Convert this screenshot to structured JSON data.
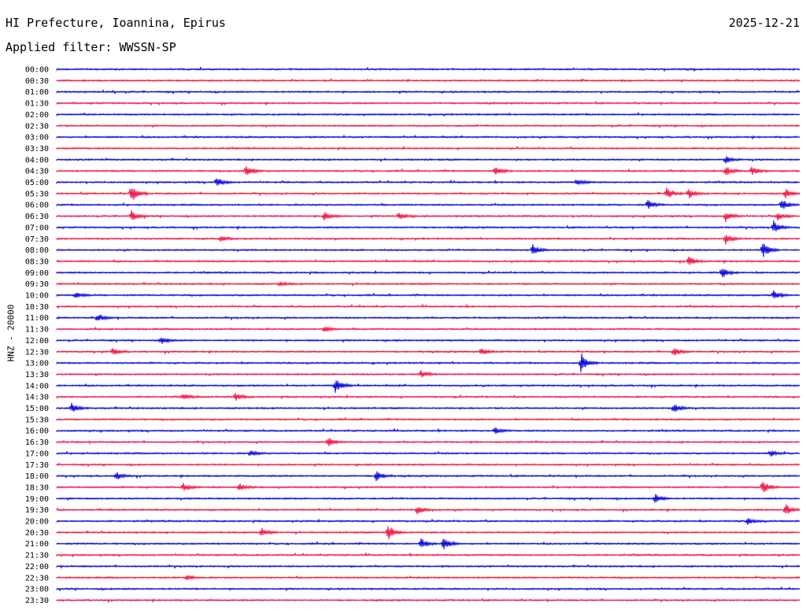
{
  "header": {
    "title": "HI Prefecture, Ioannina, Epirus",
    "date": "2025-12-21",
    "filter": "Applied filter: WWSSN-SP"
  },
  "colors": {
    "blue": "#0000d8",
    "red": "#ee1144"
  },
  "chart_data": {
    "type": "line",
    "chart_kind": "helicorder",
    "ylabel": "HNZ - 20000",
    "rows": [
      {
        "time": "00:00",
        "color": "blue",
        "events": []
      },
      {
        "time": "00:30",
        "color": "red",
        "events": []
      },
      {
        "time": "01:00",
        "color": "blue",
        "events": []
      },
      {
        "time": "01:30",
        "color": "red",
        "events": []
      },
      {
        "time": "02:00",
        "color": "blue",
        "events": []
      },
      {
        "time": "02:30",
        "color": "red",
        "events": []
      },
      {
        "time": "03:00",
        "color": "blue",
        "events": []
      },
      {
        "time": "03:30",
        "color": "red",
        "events": []
      },
      {
        "time": "04:00",
        "color": "blue",
        "events": [
          {
            "t": 0.9,
            "a": 5
          }
        ]
      },
      {
        "time": "04:30",
        "color": "red",
        "events": [
          {
            "t": 0.255,
            "a": 8
          },
          {
            "t": 0.59,
            "a": 7
          },
          {
            "t": 0.9,
            "a": 6
          },
          {
            "t": 0.935,
            "a": 6
          }
        ]
      },
      {
        "time": "05:00",
        "color": "blue",
        "events": [
          {
            "t": 0.215,
            "a": 6
          },
          {
            "t": 0.7,
            "a": 4
          }
        ]
      },
      {
        "time": "05:30",
        "color": "red",
        "events": [
          {
            "t": 0.1,
            "a": 12
          },
          {
            "t": 0.82,
            "a": 8
          },
          {
            "t": 0.85,
            "a": 7
          },
          {
            "t": 0.98,
            "a": 7
          }
        ]
      },
      {
        "time": "06:00",
        "color": "blue",
        "events": [
          {
            "t": 0.795,
            "a": 6
          },
          {
            "t": 0.975,
            "a": 8
          }
        ]
      },
      {
        "time": "06:30",
        "color": "red",
        "events": [
          {
            "t": 0.1,
            "a": 7
          },
          {
            "t": 0.36,
            "a": 6
          },
          {
            "t": 0.46,
            "a": 5
          },
          {
            "t": 0.9,
            "a": 7
          },
          {
            "t": 0.97,
            "a": 5
          }
        ]
      },
      {
        "time": "07:00",
        "color": "blue",
        "events": [
          {
            "t": 0.965,
            "a": 8
          }
        ]
      },
      {
        "time": "07:30",
        "color": "red",
        "events": [
          {
            "t": 0.22,
            "a": 4
          },
          {
            "t": 0.9,
            "a": 7
          }
        ]
      },
      {
        "time": "08:00",
        "color": "blue",
        "events": [
          {
            "t": 0.64,
            "a": 8
          },
          {
            "t": 0.95,
            "a": 10
          }
        ]
      },
      {
        "time": "08:30",
        "color": "red",
        "events": [
          {
            "t": 0.85,
            "a": 7
          }
        ]
      },
      {
        "time": "09:00",
        "color": "blue",
        "events": [
          {
            "t": 0.895,
            "a": 7
          }
        ]
      },
      {
        "time": "09:30",
        "color": "red",
        "events": [
          {
            "t": 0.3,
            "a": 3
          }
        ]
      },
      {
        "time": "10:00",
        "color": "blue",
        "events": [
          {
            "t": 0.025,
            "a": 4
          },
          {
            "t": 0.965,
            "a": 6
          }
        ]
      },
      {
        "time": "10:30",
        "color": "red",
        "events": []
      },
      {
        "time": "11:00",
        "color": "blue",
        "events": [
          {
            "t": 0.055,
            "a": 5
          }
        ]
      },
      {
        "time": "11:30",
        "color": "red",
        "events": [
          {
            "t": 0.36,
            "a": 4
          }
        ]
      },
      {
        "time": "12:00",
        "color": "blue",
        "events": [
          {
            "t": 0.14,
            "a": 5
          }
        ]
      },
      {
        "time": "12:30",
        "color": "red",
        "events": [
          {
            "t": 0.075,
            "a": 5
          },
          {
            "t": 0.57,
            "a": 5
          },
          {
            "t": 0.83,
            "a": 6
          }
        ]
      },
      {
        "time": "13:00",
        "color": "blue",
        "events": [
          {
            "t": 0.705,
            "a": 12
          }
        ]
      },
      {
        "time": "13:30",
        "color": "red",
        "events": [
          {
            "t": 0.49,
            "a": 5
          }
        ]
      },
      {
        "time": "14:00",
        "color": "blue",
        "events": [
          {
            "t": 0.375,
            "a": 9
          }
        ]
      },
      {
        "time": "14:30",
        "color": "red",
        "events": [
          {
            "t": 0.17,
            "a": 4
          },
          {
            "t": 0.24,
            "a": 5
          }
        ]
      },
      {
        "time": "15:00",
        "color": "blue",
        "events": [
          {
            "t": 0.02,
            "a": 6
          },
          {
            "t": 0.83,
            "a": 7
          }
        ]
      },
      {
        "time": "15:30",
        "color": "red",
        "events": []
      },
      {
        "time": "16:00",
        "color": "blue",
        "events": [
          {
            "t": 0.59,
            "a": 4
          }
        ]
      },
      {
        "time": "16:30",
        "color": "red",
        "events": [
          {
            "t": 0.365,
            "a": 7
          }
        ]
      },
      {
        "time": "17:00",
        "color": "blue",
        "events": [
          {
            "t": 0.26,
            "a": 4
          },
          {
            "t": 0.96,
            "a": 4
          }
        ]
      },
      {
        "time": "17:30",
        "color": "red",
        "events": []
      },
      {
        "time": "18:00",
        "color": "blue",
        "events": [
          {
            "t": 0.08,
            "a": 5
          },
          {
            "t": 0.43,
            "a": 7
          }
        ]
      },
      {
        "time": "18:30",
        "color": "red",
        "events": [
          {
            "t": 0.17,
            "a": 6
          },
          {
            "t": 0.245,
            "a": 5
          },
          {
            "t": 0.95,
            "a": 9
          }
        ]
      },
      {
        "time": "19:00",
        "color": "blue",
        "events": [
          {
            "t": 0.805,
            "a": 7
          }
        ]
      },
      {
        "time": "19:30",
        "color": "red",
        "events": [
          {
            "t": 0.485,
            "a": 6
          },
          {
            "t": 0.98,
            "a": 9
          }
        ]
      },
      {
        "time": "20:00",
        "color": "blue",
        "events": [
          {
            "t": 0.93,
            "a": 4
          }
        ]
      },
      {
        "time": "20:30",
        "color": "red",
        "events": [
          {
            "t": 0.275,
            "a": 6
          },
          {
            "t": 0.445,
            "a": 11
          }
        ]
      },
      {
        "time": "21:00",
        "color": "blue",
        "events": [
          {
            "t": 0.49,
            "a": 7
          },
          {
            "t": 0.52,
            "a": 8
          }
        ]
      },
      {
        "time": "21:30",
        "color": "red",
        "events": []
      },
      {
        "time": "22:00",
        "color": "blue",
        "events": []
      },
      {
        "time": "22:30",
        "color": "red",
        "events": [
          {
            "t": 0.175,
            "a": 4
          }
        ]
      },
      {
        "time": "23:00",
        "color": "blue",
        "events": []
      },
      {
        "time": "23:30",
        "color": "red",
        "events": []
      }
    ]
  }
}
